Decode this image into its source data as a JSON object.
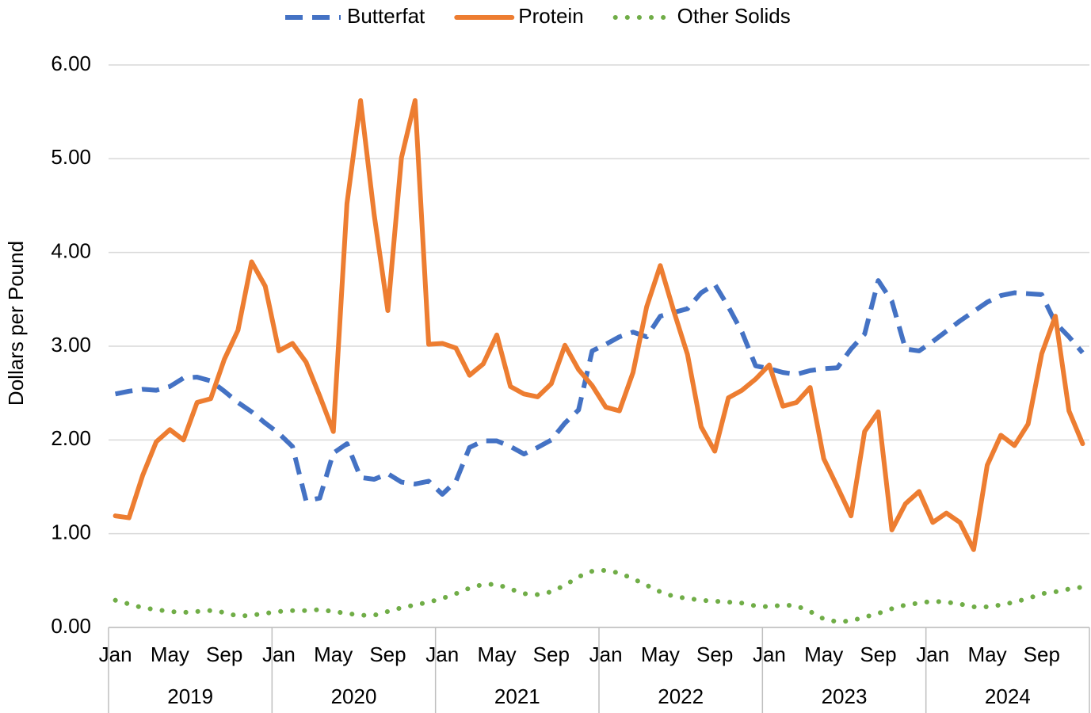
{
  "chart_data": {
    "type": "line",
    "y_label": "Dollars per Pound",
    "categories": [
      "Jan",
      null,
      null,
      null,
      "May",
      null,
      null,
      null,
      "Sep",
      null,
      null,
      null,
      "Jan",
      null,
      null,
      null,
      "May",
      null,
      null,
      null,
      "Sep",
      null,
      null,
      null,
      "Jan",
      null,
      null,
      null,
      "May",
      null,
      null,
      null,
      "Sep",
      null,
      null,
      null,
      "Jan",
      null,
      null,
      null,
      "May",
      null,
      null,
      null,
      "Sep",
      null,
      null,
      null,
      "Jan",
      null,
      null,
      null,
      "May",
      null,
      null,
      null,
      "Sep",
      null,
      null,
      null,
      "Jan",
      null,
      null,
      null,
      "May",
      null,
      null,
      null,
      "Sep",
      null,
      null,
      null
    ],
    "category_groups": [
      "2019",
      "2020",
      "2021",
      "2022",
      "2023",
      "2024"
    ],
    "series": [
      {
        "name": "Butterfat",
        "color": "#4472c4",
        "dash": "dashed",
        "values": [
          2.49,
          2.52,
          2.54,
          2.53,
          2.57,
          2.66,
          2.67,
          2.63,
          2.52,
          2.4,
          2.3,
          2.18,
          2.07,
          1.93,
          1.35,
          1.38,
          1.86,
          1.96,
          1.6,
          1.58,
          1.64,
          1.55,
          1.53,
          1.56,
          1.42,
          1.56,
          1.92,
          1.99,
          1.99,
          1.93,
          1.85,
          1.92,
          2.0,
          2.18,
          2.32,
          2.95,
          3.02,
          3.1,
          3.15,
          3.1,
          3.32,
          3.36,
          3.4,
          3.57,
          3.66,
          3.42,
          3.15,
          2.79,
          2.76,
          2.72,
          2.7,
          2.74,
          2.76,
          2.77,
          2.97,
          3.13,
          3.7,
          3.48,
          2.97,
          2.95,
          3.05,
          3.16,
          3.27,
          3.37,
          3.47,
          3.54,
          3.57,
          3.56,
          3.55,
          3.25,
          3.1,
          2.93
        ]
      },
      {
        "name": "Protein",
        "color": "#ed7d31",
        "dash": "solid",
        "values": [
          1.19,
          1.17,
          1.62,
          1.98,
          2.11,
          2.0,
          2.4,
          2.44,
          2.86,
          3.17,
          3.9,
          3.64,
          2.95,
          3.03,
          2.83,
          2.47,
          2.09,
          4.52,
          5.62,
          4.4,
          3.38,
          5.01,
          5.62,
          3.02,
          3.03,
          2.98,
          2.69,
          2.81,
          3.12,
          2.57,
          2.49,
          2.46,
          2.6,
          3.01,
          2.75,
          2.58,
          2.35,
          2.31,
          2.72,
          3.42,
          3.86,
          3.37,
          2.91,
          2.14,
          1.88,
          2.45,
          2.53,
          2.65,
          2.8,
          2.36,
          2.4,
          2.56,
          1.8,
          1.5,
          1.19,
          2.09,
          2.3,
          1.04,
          1.32,
          1.45,
          1.12,
          1.22,
          1.12,
          0.83,
          1.73,
          2.05,
          1.94,
          2.17,
          2.92,
          3.32,
          2.31,
          1.96
        ]
      },
      {
        "name": "Other Solids",
        "color": "#70ad47",
        "dash": "dotted",
        "values": [
          0.29,
          0.25,
          0.21,
          0.19,
          0.17,
          0.16,
          0.17,
          0.18,
          0.16,
          0.12,
          0.13,
          0.15,
          0.17,
          0.18,
          0.18,
          0.19,
          0.17,
          0.15,
          0.13,
          0.13,
          0.17,
          0.21,
          0.24,
          0.27,
          0.31,
          0.36,
          0.42,
          0.46,
          0.46,
          0.41,
          0.36,
          0.35,
          0.38,
          0.45,
          0.54,
          0.6,
          0.61,
          0.58,
          0.52,
          0.45,
          0.38,
          0.33,
          0.31,
          0.29,
          0.28,
          0.27,
          0.26,
          0.23,
          0.22,
          0.24,
          0.23,
          0.17,
          0.09,
          0.06,
          0.07,
          0.11,
          0.15,
          0.2,
          0.24,
          0.26,
          0.28,
          0.27,
          0.25,
          0.22,
          0.22,
          0.24,
          0.27,
          0.31,
          0.36,
          0.38,
          0.41,
          0.43
        ]
      }
    ],
    "ylim": [
      0,
      6
    ],
    "yticks": [
      {
        "value": 0,
        "label": "0.00"
      },
      {
        "value": 1,
        "label": "1.00"
      },
      {
        "value": 2,
        "label": "2.00"
      },
      {
        "value": 3,
        "label": "3.00"
      },
      {
        "value": 4,
        "label": "4.00"
      },
      {
        "value": 5,
        "label": "5.00"
      },
      {
        "value": 6,
        "label": "6.00"
      }
    ],
    "grid": true,
    "legend": "top"
  }
}
